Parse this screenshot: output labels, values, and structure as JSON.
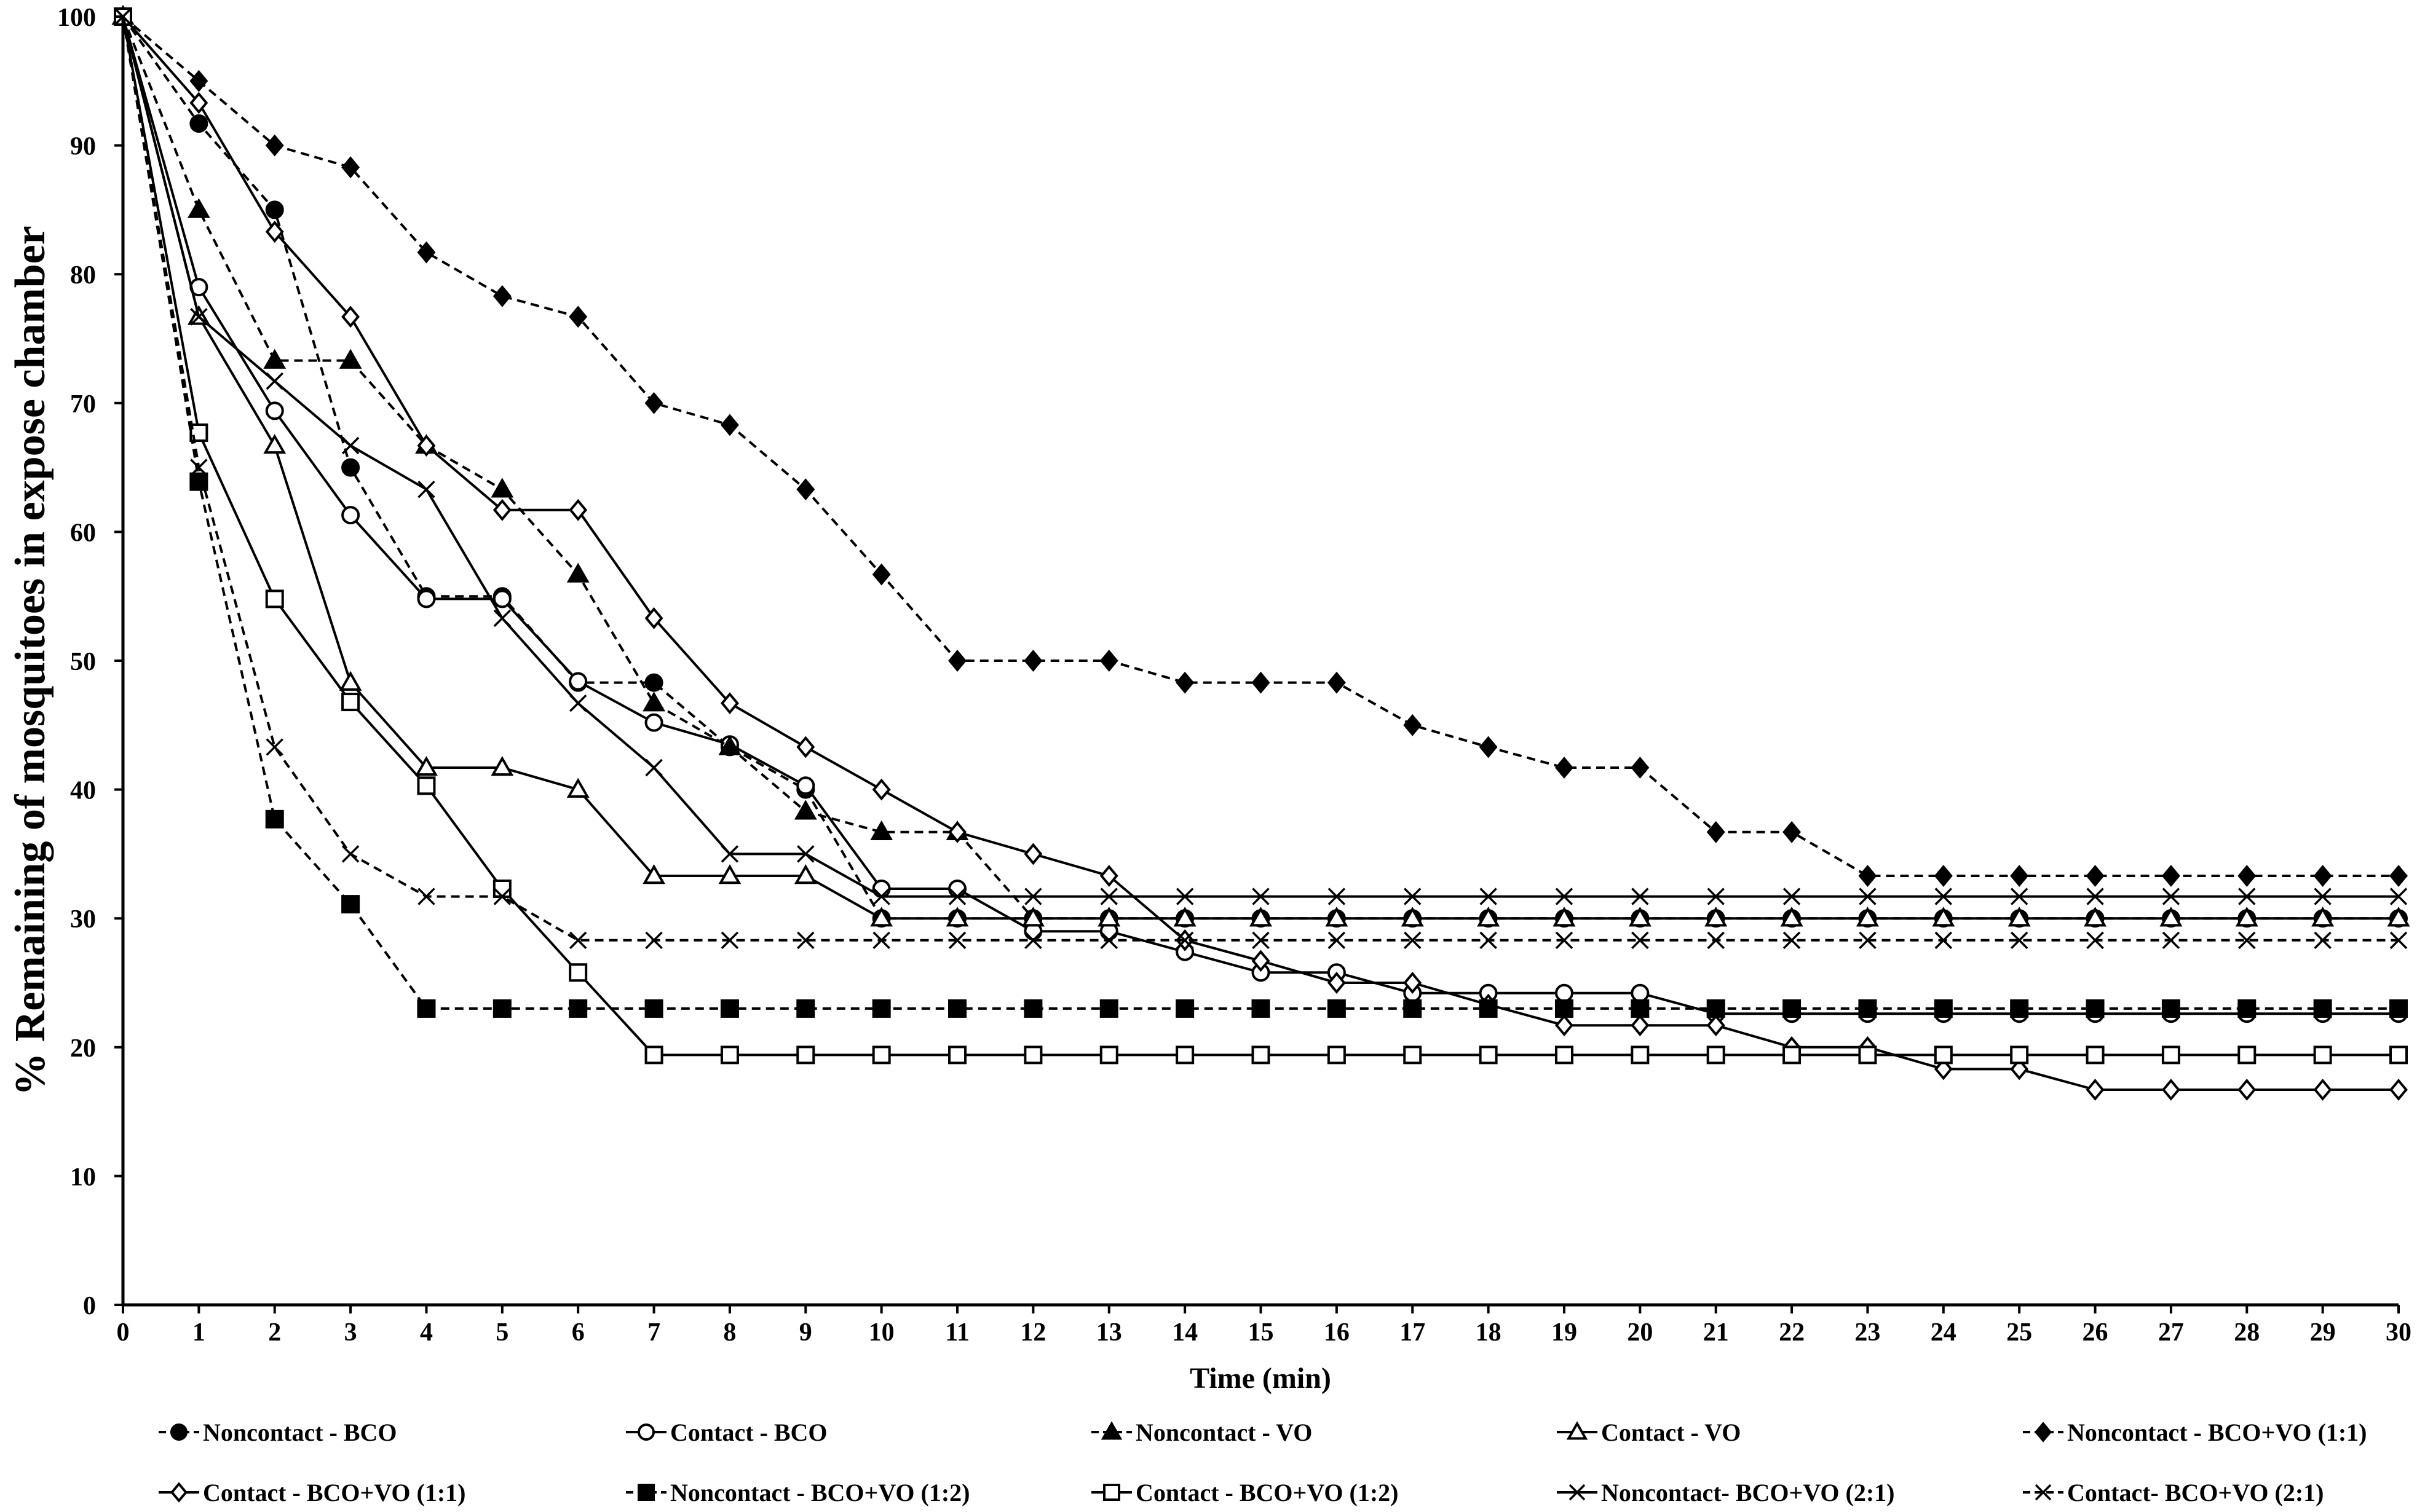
{
  "chart_data": {
    "type": "line",
    "title": "",
    "xlabel": "Time (min)",
    "ylabel": "% Remaining of mosquitoes in expose chamber",
    "xlim": [
      0,
      30
    ],
    "ylim": [
      0,
      100
    ],
    "x_ticks": [
      0,
      1,
      2,
      3,
      4,
      5,
      6,
      7,
      8,
      9,
      10,
      11,
      12,
      13,
      14,
      15,
      16,
      17,
      18,
      19,
      20,
      21,
      22,
      23,
      24,
      25,
      26,
      27,
      28,
      29,
      30
    ],
    "y_ticks": [
      0,
      10,
      20,
      30,
      40,
      50,
      60,
      70,
      80,
      90,
      100
    ],
    "grid": false,
    "legend_position": "bottom",
    "x": [
      0,
      1,
      2,
      3,
      4,
      5,
      6,
      7,
      8,
      9,
      10,
      11,
      12,
      13,
      14,
      15,
      16,
      17,
      18,
      19,
      20,
      21,
      22,
      23,
      24,
      25,
      26,
      27,
      28,
      29,
      30
    ],
    "series": [
      {
        "name": "Noncontact - BCO",
        "line": "dashed",
        "marker": "circle-filled",
        "values": [
          100,
          91.7,
          85,
          65,
          55,
          55,
          48.3,
          48.3,
          43.3,
          40,
          30,
          30,
          30,
          30,
          30,
          30,
          30,
          30,
          30,
          30,
          30,
          30,
          30,
          30,
          30,
          30,
          30,
          30,
          30,
          30,
          30
        ]
      },
      {
        "name": "Contact - BCO",
        "line": "solid",
        "marker": "circle-open",
        "values": [
          100,
          79,
          69.4,
          61.3,
          54.8,
          54.8,
          48.4,
          45.2,
          43.5,
          40.3,
          32.3,
          32.3,
          29,
          29,
          27.4,
          25.8,
          25.8,
          24.2,
          24.2,
          24.2,
          24.2,
          22.6,
          22.6,
          22.6,
          22.6,
          22.6,
          22.6,
          22.6,
          22.6,
          22.6,
          22.6
        ]
      },
      {
        "name": "Noncontact - VO",
        "line": "dashed",
        "marker": "triangle-filled",
        "values": [
          100,
          85,
          73.3,
          73.3,
          66.7,
          63.3,
          56.7,
          46.7,
          43.3,
          38.3,
          36.7,
          36.7,
          30,
          30,
          30,
          30,
          30,
          30,
          30,
          30,
          30,
          30,
          30,
          30,
          30,
          30,
          30,
          30,
          30,
          30,
          30
        ]
      },
      {
        "name": "Contact - VO",
        "line": "solid",
        "marker": "triangle-open",
        "values": [
          100,
          76.7,
          66.7,
          48.3,
          41.7,
          41.7,
          40,
          33.3,
          33.3,
          33.3,
          30,
          30,
          30,
          30,
          30,
          30,
          30,
          30,
          30,
          30,
          30,
          30,
          30,
          30,
          30,
          30,
          30,
          30,
          30,
          30,
          30
        ]
      },
      {
        "name": "Noncontact - BCO+VO (1:1)",
        "line": "dashed",
        "marker": "diamond-filled",
        "values": [
          100,
          95,
          90,
          88.3,
          81.7,
          78.3,
          76.7,
          70,
          68.3,
          63.3,
          56.7,
          50,
          50,
          50,
          48.3,
          48.3,
          48.3,
          45,
          43.3,
          41.7,
          41.7,
          36.7,
          36.7,
          33.3,
          33.3,
          33.3,
          33.3,
          33.3,
          33.3,
          33.3,
          33.3
        ]
      },
      {
        "name": "Contact - BCO+VO (1:1)",
        "line": "solid",
        "marker": "diamond-open",
        "values": [
          100,
          93.3,
          83.3,
          76.7,
          66.7,
          61.7,
          61.7,
          53.3,
          46.7,
          43.3,
          40,
          36.7,
          35,
          33.3,
          28.3,
          26.7,
          25,
          25,
          23.3,
          21.7,
          21.7,
          21.7,
          20,
          20,
          18.3,
          18.3,
          16.7,
          16.7,
          16.7,
          16.7,
          16.7
        ]
      },
      {
        "name": "Noncontact - BCO+VO (1:2)",
        "line": "dashed",
        "marker": "square-filled",
        "values": [
          100,
          63.9,
          37.7,
          31.1,
          23,
          23,
          23,
          23,
          23,
          23,
          23,
          23,
          23,
          23,
          23,
          23,
          23,
          23,
          23,
          23,
          23,
          23,
          23,
          23,
          23,
          23,
          23,
          23,
          23,
          23,
          23
        ]
      },
      {
        "name": "Contact - BCO+VO (1:2)",
        "line": "solid",
        "marker": "square-open",
        "values": [
          100,
          67.7,
          54.8,
          46.8,
          40.3,
          32.3,
          25.8,
          19.4,
          19.4,
          19.4,
          19.4,
          19.4,
          19.4,
          19.4,
          19.4,
          19.4,
          19.4,
          19.4,
          19.4,
          19.4,
          19.4,
          19.4,
          19.4,
          19.4,
          19.4,
          19.4,
          19.4,
          19.4,
          19.4,
          19.4,
          19.4
        ]
      },
      {
        "name": "Noncontact- BCO+VO (2:1)",
        "line": "solid",
        "marker": "x",
        "values": [
          100,
          76.7,
          71.7,
          66.7,
          63.3,
          53.3,
          46.7,
          41.7,
          35,
          35,
          31.7,
          31.7,
          31.7,
          31.7,
          31.7,
          31.7,
          31.7,
          31.7,
          31.7,
          31.7,
          31.7,
          31.7,
          31.7,
          31.7,
          31.7,
          31.7,
          31.7,
          31.7,
          31.7,
          31.7,
          31.7
        ]
      },
      {
        "name": "Contact- BCO+VO (2:1)",
        "line": "dashed",
        "marker": "x",
        "values": [
          100,
          65,
          43.3,
          35,
          31.7,
          31.7,
          28.3,
          28.3,
          28.3,
          28.3,
          28.3,
          28.3,
          28.3,
          28.3,
          28.3,
          28.3,
          28.3,
          28.3,
          28.3,
          28.3,
          28.3,
          28.3,
          28.3,
          28.3,
          28.3,
          28.3,
          28.3,
          28.3,
          28.3,
          28.3,
          28.3
        ]
      }
    ]
  }
}
